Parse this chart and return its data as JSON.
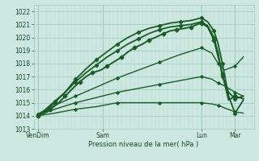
{
  "xlabel": "Pression niveau de la mer( hPa )",
  "bg_color": "#cce8e0",
  "grid_color_major": "#a0c8be",
  "grid_color_minor": "#b8d8d0",
  "line_color": "#1a5c28",
  "ylim": [
    1013,
    1022.5
  ],
  "xlim": [
    0,
    105
  ],
  "yticks": [
    1013,
    1014,
    1015,
    1016,
    1017,
    1018,
    1019,
    1020,
    1021,
    1022
  ],
  "xtick_labels": [
    "VenDim",
    "Sam",
    "Lun",
    "Mar"
  ],
  "xtick_pos": [
    2,
    33,
    80,
    96
  ],
  "lines": [
    {
      "x": [
        2,
        5,
        10,
        15,
        20,
        25,
        30,
        35,
        40,
        45,
        50,
        55,
        60,
        65,
        70,
        75,
        80,
        83,
        86,
        88,
        90,
        93,
        96,
        100
      ],
      "y": [
        1014.0,
        1014.3,
        1015.0,
        1015.8,
        1016.8,
        1017.6,
        1018.3,
        1018.9,
        1019.5,
        1020.0,
        1020.4,
        1020.7,
        1020.9,
        1021.1,
        1021.2,
        1021.3,
        1021.5,
        1021.2,
        1020.5,
        1019.5,
        1018.0,
        1015.5,
        1014.2,
        1015.2
      ],
      "lw": 1.3,
      "marker": "D",
      "ms": 2.2
    },
    {
      "x": [
        2,
        5,
        10,
        15,
        20,
        25,
        30,
        35,
        40,
        45,
        50,
        55,
        60,
        65,
        70,
        75,
        80,
        83,
        86,
        88,
        90,
        93,
        96,
        100
      ],
      "y": [
        1014.1,
        1014.4,
        1015.1,
        1015.8,
        1016.6,
        1017.3,
        1017.9,
        1018.5,
        1019.0,
        1019.5,
        1019.9,
        1020.3,
        1020.6,
        1020.8,
        1020.9,
        1021.0,
        1021.2,
        1020.9,
        1020.0,
        1018.8,
        1017.0,
        1015.8,
        1015.3,
        1015.5
      ],
      "lw": 1.3,
      "marker": "D",
      "ms": 2.2
    },
    {
      "x": [
        2,
        5,
        8,
        12,
        15,
        18,
        22,
        25,
        28,
        32,
        35,
        38,
        42,
        45,
        48,
        52,
        55,
        58,
        62,
        65,
        68,
        72,
        75,
        78,
        80,
        83,
        86,
        88,
        90,
        93,
        96,
        100
      ],
      "y": [
        1014.0,
        1014.2,
        1014.5,
        1015.0,
        1015.5,
        1016.0,
        1016.6,
        1017.0,
        1017.3,
        1017.5,
        1017.8,
        1018.1,
        1018.5,
        1018.9,
        1019.2,
        1019.5,
        1019.8,
        1020.0,
        1020.3,
        1020.5,
        1020.6,
        1020.7,
        1020.8,
        1021.0,
        1021.1,
        1020.8,
        1019.8,
        1018.5,
        1017.2,
        1015.2,
        1015.5,
        1015.3
      ],
      "lw": 1.4,
      "marker": "D",
      "ms": 2.5
    },
    {
      "x": [
        2,
        10,
        20,
        30,
        40,
        50,
        60,
        70,
        80,
        85,
        88,
        91,
        96,
        100
      ],
      "y": [
        1014.0,
        1014.8,
        1015.5,
        1016.2,
        1016.9,
        1017.5,
        1018.1,
        1018.7,
        1019.2,
        1018.8,
        1018.0,
        1017.5,
        1017.8,
        1018.5
      ],
      "lw": 1.0,
      "marker": "D",
      "ms": 1.8
    },
    {
      "x": [
        2,
        10,
        20,
        30,
        40,
        50,
        60,
        70,
        80,
        85,
        88,
        91,
        96,
        100
      ],
      "y": [
        1014.0,
        1014.5,
        1015.0,
        1015.4,
        1015.8,
        1016.1,
        1016.4,
        1016.7,
        1017.0,
        1016.8,
        1016.5,
        1016.3,
        1015.8,
        1015.5
      ],
      "lw": 1.0,
      "marker": "D",
      "ms": 1.8
    },
    {
      "x": [
        2,
        10,
        20,
        30,
        40,
        50,
        60,
        70,
        80,
        85,
        88,
        91,
        96,
        100
      ],
      "y": [
        1014.0,
        1014.2,
        1014.5,
        1014.7,
        1015.0,
        1015.0,
        1015.0,
        1015.0,
        1015.0,
        1014.9,
        1014.8,
        1014.6,
        1014.3,
        1014.2
      ],
      "lw": 1.0,
      "marker": "D",
      "ms": 1.8
    }
  ],
  "xlabel_fontsize": 6,
  "tick_fontsize": 5.5
}
